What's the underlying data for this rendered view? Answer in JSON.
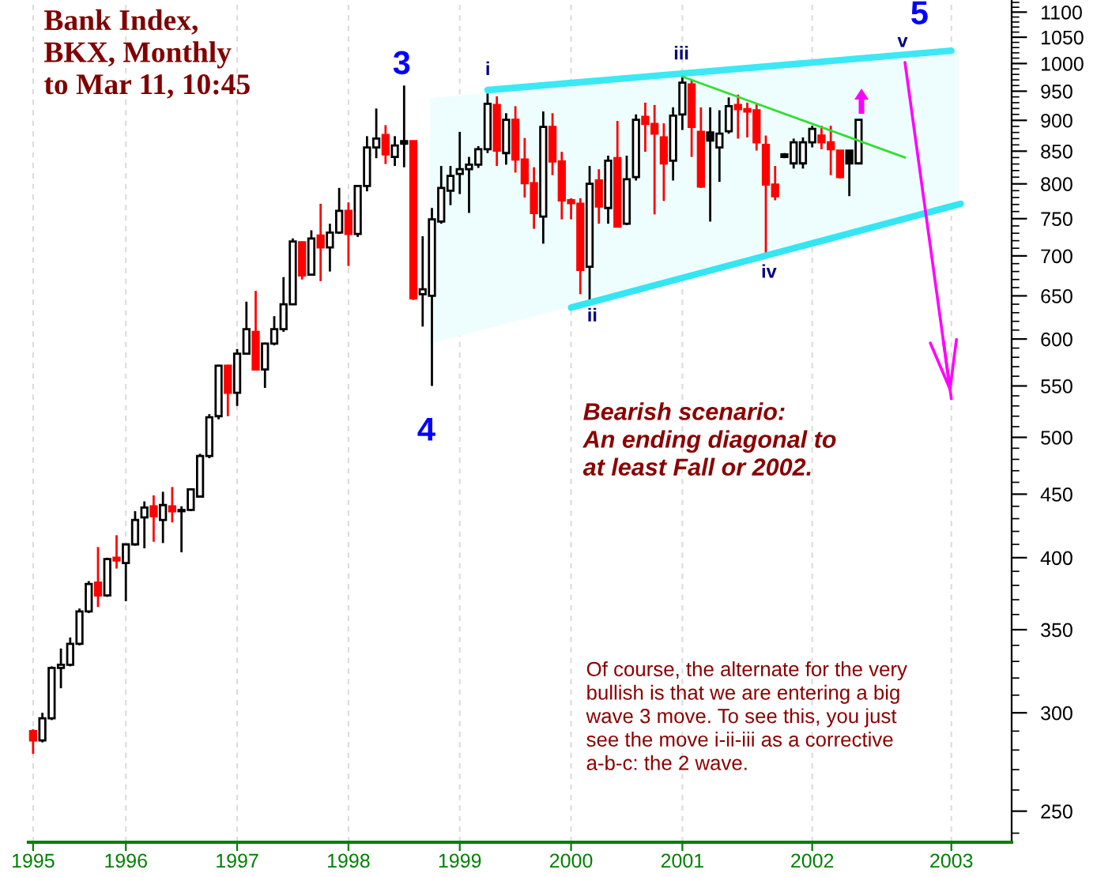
{
  "chart_data": {
    "type": "candlestick",
    "title": "Bank Index,\nBKX, Monthly\nto Mar 11, 10:45",
    "categories": [
      "1995",
      null,
      null,
      null,
      null,
      null,
      null,
      null,
      null,
      null,
      "1996",
      null,
      null,
      null,
      null,
      null,
      null,
      null,
      null,
      null,
      null,
      null,
      "1997",
      null,
      null,
      null,
      null,
      null,
      null,
      null,
      null,
      null,
      null,
      null,
      "1998",
      null,
      null,
      null,
      null,
      null,
      null,
      null,
      null,
      null,
      null,
      null,
      "1999",
      null,
      null,
      null,
      null,
      null,
      null,
      null,
      null,
      null,
      null,
      null,
      "2000",
      null,
      null,
      null,
      null,
      null,
      null,
      null,
      null,
      null,
      null,
      null,
      "2001",
      null,
      null,
      null,
      null,
      null,
      null,
      null,
      null,
      null,
      null,
      null,
      null,
      null,
      "2002",
      null,
      null,
      null,
      null,
      null,
      null,
      null,
      null,
      null,
      null,
      null,
      null,
      null,
      null,
      "2003",
      null,
      null,
      null,
      null,
      null,
      null
    ],
    "ohlc": [
      [
        290,
        291,
        278,
        285
      ],
      [
        285,
        300,
        284,
        297
      ],
      [
        297,
        327,
        296,
        326
      ],
      [
        326,
        338,
        314,
        328
      ],
      [
        328,
        345,
        327,
        341
      ],
      [
        341,
        364,
        340,
        362
      ],
      [
        362,
        383,
        361,
        381
      ],
      [
        382,
        408,
        365,
        373
      ],
      [
        373,
        400,
        372,
        399
      ],
      [
        400,
        417,
        392,
        398
      ],
      [
        396,
        410,
        369,
        410
      ],
      [
        410,
        436,
        409,
        429
      ],
      [
        431,
        444,
        407,
        439
      ],
      [
        440,
        449,
        412,
        432
      ],
      [
        429,
        452,
        411,
        441
      ],
      [
        440,
        456,
        427,
        436
      ],
      [
        436,
        440,
        404,
        437
      ],
      [
        437,
        455,
        436,
        454
      ],
      [
        448,
        485,
        447,
        483
      ],
      [
        483,
        522,
        481,
        519
      ],
      [
        520,
        572,
        517,
        571
      ],
      [
        571,
        572,
        520,
        543
      ],
      [
        543,
        589,
        530,
        584
      ],
      [
        584,
        643,
        583,
        611
      ],
      [
        608,
        656,
        566,
        567
      ],
      [
        567,
        596,
        548,
        595
      ],
      [
        595,
        626,
        593,
        611
      ],
      [
        611,
        673,
        608,
        640
      ],
      [
        640,
        723,
        639,
        719
      ],
      [
        718,
        719,
        670,
        675
      ],
      [
        676,
        734,
        675,
        723
      ],
      [
        727,
        771,
        668,
        711
      ],
      [
        711,
        743,
        680,
        731
      ],
      [
        731,
        794,
        729,
        761
      ],
      [
        761,
        773,
        687,
        729
      ],
      [
        729,
        797,
        725,
        797
      ],
      [
        797,
        874,
        789,
        856
      ],
      [
        856,
        920,
        839,
        870
      ],
      [
        876,
        892,
        830,
        845
      ],
      [
        841,
        874,
        827,
        859
      ],
      [
        862,
        960,
        825,
        866
      ],
      [
        866,
        867,
        645,
        647
      ],
      [
        652,
        726,
        614,
        658
      ],
      [
        650,
        765,
        550,
        749
      ],
      [
        746,
        827,
        743,
        794
      ],
      [
        790,
        827,
        769,
        812
      ],
      [
        815,
        881,
        785,
        822
      ],
      [
        822,
        841,
        758,
        829
      ],
      [
        829,
        858,
        824,
        853
      ],
      [
        853,
        946,
        847,
        928
      ],
      [
        926,
        941,
        827,
        851
      ],
      [
        847,
        912,
        829,
        901
      ],
      [
        901,
        924,
        817,
        837
      ],
      [
        837,
        871,
        780,
        801
      ],
      [
        801,
        825,
        736,
        758
      ],
      [
        753,
        915,
        716,
        889
      ],
      [
        889,
        912,
        813,
        834
      ],
      [
        834,
        849,
        749,
        776
      ],
      [
        776,
        779,
        749,
        772
      ],
      [
        771,
        779,
        652,
        682
      ],
      [
        686,
        827,
        643,
        800
      ],
      [
        805,
        822,
        743,
        767
      ],
      [
        765,
        843,
        743,
        835
      ],
      [
        839,
        899,
        739,
        739
      ],
      [
        743,
        843,
        741,
        807
      ],
      [
        810,
        910,
        805,
        901
      ],
      [
        906,
        930,
        849,
        894
      ],
      [
        894,
        926,
        756,
        878
      ],
      [
        872,
        895,
        775,
        831
      ],
      [
        835,
        922,
        805,
        908
      ],
      [
        910,
        976,
        884,
        965
      ],
      [
        962,
        971,
        841,
        889
      ],
      [
        881,
        922,
        794,
        796
      ],
      [
        880,
        922,
        746,
        867
      ],
      [
        856,
        917,
        803,
        878
      ],
      [
        882,
        939,
        878,
        924
      ],
      [
        926,
        944,
        870,
        919
      ],
      [
        919,
        930,
        872,
        915
      ],
      [
        917,
        928,
        851,
        864
      ],
      [
        860,
        875,
        703,
        799
      ],
      [
        799,
        827,
        776,
        782
      ],
      [
        845,
        847,
        839,
        841
      ],
      [
        831,
        870,
        823,
        864
      ],
      [
        831,
        872,
        823,
        864
      ],
      [
        864,
        891,
        856,
        886
      ],
      [
        875,
        891,
        853,
        864
      ],
      [
        864,
        891,
        813,
        853
      ],
      [
        851,
        851,
        808,
        810
      ],
      [
        851,
        851,
        782,
        831
      ],
      [
        831,
        901,
        830,
        901
      ],
      null,
      null,
      null,
      null,
      null,
      null,
      null,
      null,
      null,
      null,
      null,
      null,
      null,
      null,
      null,
      null
    ],
    "colors": [
      "#ff0000",
      "#ffffff",
      "#ffffff",
      "#ffffff",
      "#ffffff",
      "#ffffff",
      "#ffffff",
      "#ff0000",
      "#ffffff",
      "#ff0000",
      "#ffffff",
      "#ffffff",
      "#ffffff",
      "#ff0000",
      "#ffffff",
      "#ff0000",
      "#000000",
      "#ffffff",
      "#ffffff",
      "#ffffff",
      "#ffffff",
      "#ff0000",
      "#ffffff",
      "#ffffff",
      "#ff0000",
      "#ffffff",
      "#ffffff",
      "#ffffff",
      "#ffffff",
      "#ff0000",
      "#ffffff",
      "#ff0000",
      "#ffffff",
      "#ffffff",
      "#ff0000",
      "#ffffff",
      "#ffffff",
      "#ffffff",
      "#ff0000",
      "#ffffff",
      "#000000",
      "#ff0000",
      "#ffffff",
      "#ffffff",
      "#ffffff",
      "#ffffff",
      "#ffffff",
      "#ffffff",
      "#ffffff",
      "#ffffff",
      "#ff0000",
      "#ffffff",
      "#ff0000",
      "#ff0000",
      "#ff0000",
      "#ffffff",
      "#ff0000",
      "#ff0000",
      "#ff0000",
      "#ff0000",
      "#ffffff",
      "#ff0000",
      "#ffffff",
      "#ff0000",
      "#ffffff",
      "#ffffff",
      "#ff0000",
      "#ff0000",
      "#ff0000",
      "#ffffff",
      "#ffffff",
      "#ff0000",
      "#ff0000",
      "#000000",
      "#ffffff",
      "#ffffff",
      "#ff0000",
      "#ff0000",
      "#ff0000",
      "#ff0000",
      "#ff0000",
      "#000000",
      "#ffffff",
      "#ffffff",
      "#ffffff",
      "#ff0000",
      "#ff0000",
      "#ff0000",
      "#000000",
      "#ffffff",
      null,
      null,
      null,
      null,
      null,
      null,
      null,
      null,
      null,
      null,
      null,
      null,
      null,
      null,
      null,
      null
    ],
    "series": [
      {
        "type": "line",
        "color": "#3ce8f4",
        "values": [
          null,
          null,
          null,
          null,
          null,
          null,
          null,
          null,
          null,
          null,
          null,
          null,
          null,
          null,
          null,
          null,
          null,
          null,
          null,
          null,
          null,
          null,
          null,
          null,
          null,
          null,
          null,
          null,
          null,
          null,
          null,
          null,
          null,
          null,
          null,
          null,
          null,
          null,
          null,
          null,
          null,
          null,
          null,
          null,
          null,
          null,
          null,
          null,
          null,
          952,
          null,
          null,
          null,
          null,
          null,
          null,
          null,
          null,
          null,
          null,
          null,
          null,
          null,
          null,
          null,
          null,
          null,
          null,
          null,
          null,
          null,
          null,
          null,
          null,
          null,
          null,
          null,
          null,
          null,
          null,
          null,
          null,
          null,
          null,
          null,
          null,
          null,
          null,
          null,
          null,
          null,
          null,
          null,
          null,
          null,
          null,
          null,
          null,
          null,
          1024,
          null,
          null,
          null,
          null,
          null,
          null
        ]
      },
      {
        "type": "line",
        "color": "#33e6f2",
        "values": [
          null,
          null,
          null,
          null,
          null,
          null,
          null,
          null,
          null,
          null,
          null,
          null,
          null,
          null,
          null,
          null,
          null,
          null,
          null,
          null,
          null,
          null,
          null,
          null,
          null,
          null,
          null,
          null,
          null,
          null,
          null,
          null,
          null,
          null,
          null,
          null,
          null,
          null,
          null,
          null,
          null,
          null,
          null,
          null,
          null,
          null,
          null,
          null,
          null,
          null,
          null,
          null,
          null,
          null,
          null,
          null,
          null,
          null,
          636,
          null,
          null,
          null,
          null,
          null,
          null,
          null,
          null,
          null,
          null,
          null,
          null,
          null,
          null,
          null,
          null,
          null,
          null,
          null,
          null,
          null,
          null,
          null,
          null,
          null,
          null,
          null,
          null,
          null,
          null,
          null,
          null,
          null,
          null,
          null,
          null,
          null,
          null,
          null,
          null,
          null,
          771,
          null,
          null,
          null,
          null,
          null
        ]
      },
      {
        "type": "line",
        "color": "#33dd33",
        "values": [
          null,
          null,
          null,
          null,
          null,
          null,
          null,
          null,
          null,
          null,
          null,
          null,
          null,
          null,
          null,
          null,
          null,
          null,
          null,
          null,
          null,
          null,
          null,
          null,
          null,
          null,
          null,
          null,
          null,
          null,
          null,
          null,
          null,
          null,
          null,
          null,
          null,
          null,
          null,
          null,
          null,
          null,
          null,
          null,
          null,
          null,
          null,
          null,
          null,
          null,
          null,
          null,
          null,
          null,
          null,
          null,
          null,
          null,
          null,
          null,
          null,
          null,
          null,
          null,
          null,
          null,
          null,
          null,
          null,
          null,
          976,
          null,
          null,
          null,
          null,
          null,
          null,
          null,
          null,
          null,
          null,
          null,
          null,
          null,
          null,
          null,
          null,
          null,
          null,
          null,
          null,
          null,
          null,
          null,
          840,
          null,
          null,
          null,
          null,
          null,
          null,
          null,
          null,
          null,
          null,
          null
        ]
      },
      {
        "type": "line",
        "color": "#ff00ff",
        "values": [
          null,
          null,
          null,
          null,
          null,
          null,
          null,
          null,
          null,
          null,
          null,
          null,
          null,
          null,
          null,
          null,
          null,
          null,
          null,
          null,
          null,
          null,
          null,
          null,
          null,
          null,
          null,
          null,
          null,
          null,
          null,
          null,
          null,
          null,
          null,
          null,
          null,
          null,
          null,
          null,
          null,
          null,
          null,
          null,
          null,
          null,
          null,
          null,
          null,
          null,
          null,
          null,
          null,
          null,
          null,
          null,
          null,
          null,
          null,
          null,
          null,
          null,
          null,
          null,
          null,
          null,
          null,
          null,
          null,
          null,
          null,
          null,
          null,
          null,
          null,
          null,
          null,
          null,
          null,
          null,
          null,
          null,
          null,
          null,
          null,
          null,
          null,
          null,
          null,
          null,
          null,
          null,
          null,
          null,
          1002,
          null,
          null,
          null,
          null,
          537,
          null,
          null,
          null,
          null,
          null,
          null
        ]
      }
    ],
    "log": "y",
    "ylim": [
      236,
      1125
    ],
    "yticks": [
      {
        "value": 240,
        "label": null
      },
      250,
      {
        "value": 260,
        "label": null
      },
      {
        "value": 270,
        "label": null
      },
      {
        "value": 280,
        "label": null
      },
      {
        "value": 290,
        "label": null
      },
      300,
      {
        "value": 310,
        "label": null
      },
      {
        "value": 320,
        "label": null
      },
      {
        "value": 330,
        "label": null
      },
      {
        "value": 340,
        "label": null
      },
      350,
      {
        "value": 360,
        "label": null
      },
      {
        "value": 370,
        "label": null
      },
      {
        "value": 380,
        "label": null
      },
      {
        "value": 390,
        "label": null
      },
      400,
      {
        "value": 410,
        "label": null
      },
      {
        "value": 420,
        "label": null
      },
      {
        "value": 430,
        "label": null
      },
      {
        "value": 440,
        "label": null
      },
      450,
      {
        "value": 460,
        "label": null
      },
      {
        "value": 470,
        "label": null
      },
      {
        "value": 480,
        "label": null
      },
      {
        "value": 490,
        "label": null
      },
      500,
      {
        "value": 510,
        "label": null
      },
      {
        "value": 520,
        "label": null
      },
      {
        "value": 530,
        "label": null
      },
      {
        "value": 540,
        "label": null
      },
      550,
      {
        "value": 560,
        "label": null
      },
      {
        "value": 570,
        "label": null
      },
      {
        "value": 580,
        "label": null
      },
      {
        "value": 590,
        "label": null
      },
      600,
      {
        "value": 610,
        "label": null
      },
      {
        "value": 620,
        "label": null
      },
      {
        "value": 630,
        "label": null
      },
      {
        "value": 640,
        "label": null
      },
      650,
      {
        "value": 660,
        "label": null
      },
      {
        "value": 670,
        "label": null
      },
      {
        "value": 680,
        "label": null
      },
      {
        "value": 690,
        "label": null
      },
      700,
      {
        "value": 710,
        "label": null
      },
      {
        "value": 720,
        "label": null
      },
      {
        "value": 730,
        "label": null
      },
      {
        "value": 740,
        "label": null
      },
      750,
      {
        "value": 760,
        "label": null
      },
      {
        "value": 770,
        "label": null
      },
      {
        "value": 780,
        "label": null
      },
      {
        "value": 790,
        "label": null
      },
      800,
      {
        "value": 810,
        "label": null
      },
      {
        "value": 820,
        "label": null
      },
      {
        "value": 830,
        "label": null
      },
      {
        "value": 840,
        "label": null
      },
      850,
      {
        "value": 860,
        "label": null
      },
      {
        "value": 870,
        "label": null
      },
      {
        "value": 880,
        "label": null
      },
      {
        "value": 890,
        "label": null
      },
      900,
      {
        "value": 910,
        "label": null
      },
      {
        "value": 920,
        "label": null
      },
      {
        "value": 930,
        "label": null
      },
      {
        "value": 940,
        "label": null
      },
      950,
      {
        "value": 960,
        "label": null
      },
      {
        "value": 970,
        "label": null
      },
      {
        "value": 980,
        "label": null
      },
      {
        "value": 990,
        "label": null
      },
      1000,
      {
        "value": 1010,
        "label": null
      },
      {
        "value": 1020,
        "label": null
      },
      {
        "value": 1030,
        "label": null
      },
      {
        "value": 1040,
        "label": null
      },
      1050,
      {
        "value": 1060,
        "label": null
      },
      {
        "value": 1070,
        "label": null
      },
      {
        "value": 1080,
        "label": null
      },
      {
        "value": 1090,
        "label": null
      },
      1100,
      {
        "value": 1110,
        "label": null
      },
      {
        "value": 1120,
        "label": null
      }
    ],
    "grid": "x",
    "annotations": [
      "3",
      "4",
      "i",
      "ii",
      "iii",
      "iv",
      "v",
      "5",
      "Bearish scenario:\nAn ending diagonal to\nat least Fall or 2002.",
      "Of course, the alternate for the very\nbullish is that we are entering a big\nwave 3 move. To see this, you just\nsee the move i-ii-iii as a corrective\na-b-c: the 2 wave."
    ]
  }
}
